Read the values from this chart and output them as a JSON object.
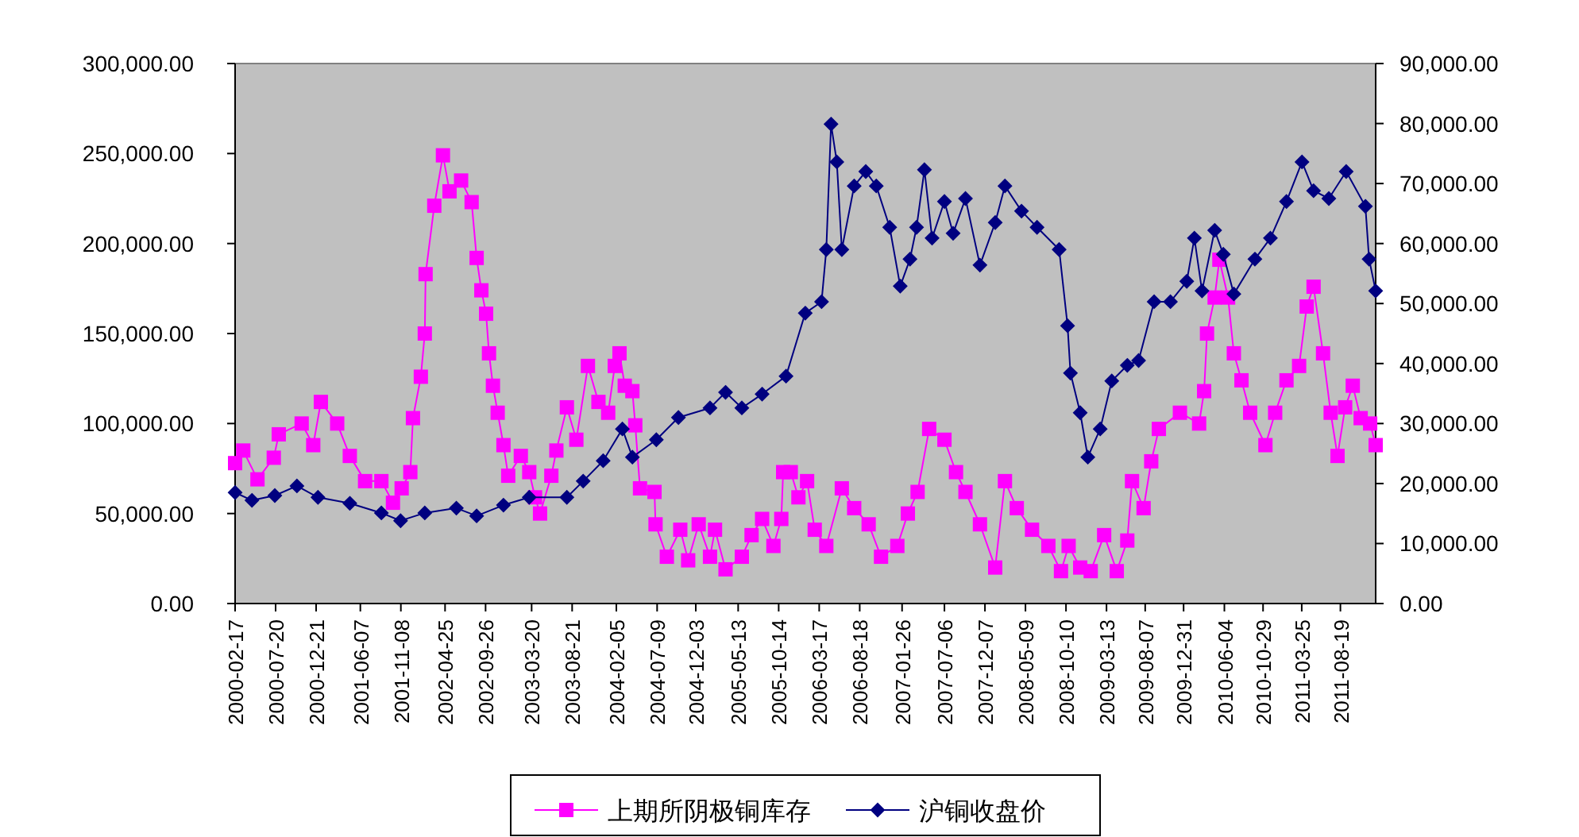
{
  "chart_data": {
    "type": "line",
    "legend": "bottom",
    "xlim": [
      "2000-02-17",
      "2011-12-31"
    ],
    "xticks": [
      "2000-02-17",
      "2000-07-20",
      "2000-12-21",
      "2001-06-07",
      "2001-11-08",
      "2002-04-25",
      "2002-09-26",
      "2003-03-20",
      "2003-08-21",
      "2004-02-05",
      "2004-07-09",
      "2004-12-03",
      "2005-05-13",
      "2005-10-14",
      "2006-03-17",
      "2006-08-18",
      "2007-01-26",
      "2007-07-06",
      "2007-12-07",
      "2008-05-09",
      "2008-10-10",
      "2009-03-13",
      "2009-08-07",
      "2009-12-31",
      "2010-06-04",
      "2010-10-29",
      "2011-03-25",
      "2011-08-19"
    ],
    "ylim": [
      0,
      300000
    ],
    "yticks": [
      {
        "value": 0,
        "label": "0.00"
      },
      {
        "value": 50000,
        "label": "50,000.00"
      },
      {
        "value": 100000,
        "label": "100,000.00"
      },
      {
        "value": 150000,
        "label": "150,000.00"
      },
      {
        "value": 200000,
        "label": "200,000.00"
      },
      {
        "value": 250000,
        "label": "250,000.00"
      },
      {
        "value": 300000,
        "label": "300,000.00"
      }
    ],
    "y2lim": [
      0,
      90000
    ],
    "y2ticks": [
      {
        "value": 0,
        "label": "0.00"
      },
      {
        "value": 10000,
        "label": "10,000.00"
      },
      {
        "value": 20000,
        "label": "20,000.00"
      },
      {
        "value": 30000,
        "label": "30,000.00"
      },
      {
        "value": 40000,
        "label": "40,000.00"
      },
      {
        "value": 50000,
        "label": "50,000.00"
      },
      {
        "value": 60000,
        "label": "60,000.00"
      },
      {
        "value": 70000,
        "label": "70,000.00"
      },
      {
        "value": 80000,
        "label": "80,000.00"
      },
      {
        "value": 90000,
        "label": "90,000.00"
      }
    ],
    "series": [
      {
        "name": "上期所阴极铜库存",
        "color": "#ff00ff",
        "marker": "square",
        "x": [
          "2000-02-17",
          "2000-03-19",
          "2000-05-12",
          "2000-07-13",
          "2000-08-01",
          "2000-10-27",
          "2000-12-10",
          "2001-01-08",
          "2001-03-11",
          "2001-04-28",
          "2001-06-25",
          "2001-08-26",
          "2001-10-09",
          "2001-11-11",
          "2001-12-14",
          "2001-12-24",
          "2002-01-23",
          "2002-02-07",
          "2002-02-10",
          "2002-03-15",
          "2002-04-17",
          "2002-05-12",
          "2002-06-25",
          "2002-08-04",
          "2002-08-23",
          "2002-09-10",
          "2002-09-28",
          "2002-10-09",
          "2002-10-24",
          "2002-11-11",
          "2002-12-03",
          "2002-12-21",
          "2003-02-07",
          "2003-03-11",
          "2003-04-02",
          "2003-04-21",
          "2003-06-03",
          "2003-06-22",
          "2003-08-01",
          "2003-09-06",
          "2003-10-20",
          "2003-11-29",
          "2004-01-05",
          "2004-01-30",
          "2004-02-17",
          "2004-03-08",
          "2004-04-06",
          "2004-04-17",
          "2004-05-05",
          "2004-06-29",
          "2004-07-03",
          "2004-08-15",
          "2004-10-05",
          "2004-11-04",
          "2004-12-14",
          "2005-01-26",
          "2005-02-14",
          "2005-03-26",
          "2005-05-27",
          "2005-07-03",
          "2005-08-12",
          "2005-09-24",
          "2005-10-24",
          "2005-10-31",
          "2005-11-29",
          "2005-12-28",
          "2006-01-30",
          "2006-02-28",
          "2006-04-13",
          "2006-06-11",
          "2006-07-28",
          "2006-09-21",
          "2006-11-07",
          "2007-01-08",
          "2007-02-17",
          "2007-03-26",
          "2007-05-09",
          "2007-07-06",
          "2007-08-19",
          "2007-09-24",
          "2007-11-18",
          "2008-01-15",
          "2008-02-21",
          "2008-04-06",
          "2008-06-03",
          "2008-08-04",
          "2008-09-21",
          "2008-10-20",
          "2008-12-03",
          "2009-01-12",
          "2009-03-04",
          "2009-04-21",
          "2009-05-31",
          "2009-06-18",
          "2009-08-01",
          "2009-08-30",
          "2009-09-28",
          "2009-12-17",
          "2010-02-28",
          "2010-03-19",
          "2010-03-30",
          "2010-04-28",
          "2010-05-16",
          "2010-06-18",
          "2010-07-10",
          "2010-08-08",
          "2010-09-10",
          "2010-11-07",
          "2010-12-14",
          "2011-01-26",
          "2011-03-15",
          "2011-04-13",
          "2011-05-09",
          "2011-06-14",
          "2011-07-13",
          "2011-08-08",
          "2011-09-06",
          "2011-10-05",
          "2011-11-04",
          "2011-12-10",
          "2011-12-31"
        ],
        "values": [
          78000,
          85000,
          69000,
          81000,
          94000,
          100000,
          88000,
          112000,
          100000,
          82000,
          68000,
          68000,
          56000,
          64000,
          73000,
          103000,
          126000,
          150000,
          183000,
          221000,
          249000,
          229000,
          235000,
          223000,
          192000,
          174000,
          161000,
          139000,
          121000,
          106000,
          88000,
          71000,
          82000,
          73000,
          59000,
          50000,
          71000,
          85000,
          109000,
          91000,
          132000,
          112000,
          106000,
          132000,
          139000,
          121000,
          118000,
          99000,
          64000,
          62000,
          44000,
          26000,
          41000,
          24000,
          44000,
          26000,
          41000,
          19000,
          26000,
          38000,
          47000,
          32000,
          47000,
          73000,
          73000,
          59000,
          68000,
          41000,
          32000,
          64000,
          53000,
          44000,
          26000,
          32000,
          50000,
          62000,
          97000,
          91000,
          73000,
          62000,
          44000,
          20000,
          68000,
          53000,
          41000,
          32000,
          18000,
          32000,
          20000,
          18000,
          38000,
          18000,
          35000,
          68000,
          53000,
          79000,
          97000,
          106000,
          100000,
          118000,
          150000,
          170000,
          191000,
          170000,
          139000,
          124000,
          106000,
          88000,
          106000,
          124000,
          132000,
          165000,
          176000,
          139000,
          106000,
          82000,
          109000,
          121000,
          103000,
          100000,
          88000
        ]
      },
      {
        "name": "沪铜收盘价",
        "color": "#000080",
        "marker": "diamond",
        "axis": "y2",
        "x": [
          "2000-02-17",
          "2000-04-21",
          "2000-07-17",
          "2000-10-09",
          "2000-12-28",
          "2001-04-28",
          "2001-08-26",
          "2001-11-07",
          "2002-02-07",
          "2002-06-07",
          "2002-08-23",
          "2002-12-03",
          "2003-03-11",
          "2003-08-01",
          "2003-10-02",
          "2003-12-17",
          "2004-02-28",
          "2004-04-06",
          "2004-07-06",
          "2004-09-28",
          "2005-01-26",
          "2005-03-26",
          "2005-05-27",
          "2005-08-12",
          "2005-11-11",
          "2006-01-23",
          "2006-03-26",
          "2006-04-13",
          "2006-05-01",
          "2006-05-23",
          "2006-06-11",
          "2006-07-28",
          "2006-09-10",
          "2006-10-20",
          "2006-12-10",
          "2007-01-19",
          "2007-02-25",
          "2007-03-22",
          "2007-04-21",
          "2007-05-20",
          "2007-07-06",
          "2007-08-08",
          "2007-09-24",
          "2007-11-18",
          "2008-01-15",
          "2008-02-21",
          "2008-04-24",
          "2008-06-22",
          "2008-09-14",
          "2008-10-16",
          "2008-10-27",
          "2008-12-03",
          "2009-01-01",
          "2009-02-17",
          "2009-04-02",
          "2009-05-31",
          "2009-07-13",
          "2009-09-10",
          "2009-11-11",
          "2010-01-12",
          "2010-02-10",
          "2010-03-11",
          "2010-04-28",
          "2010-05-31",
          "2010-07-10",
          "2010-09-28",
          "2010-11-26",
          "2011-01-26",
          "2011-03-26",
          "2011-05-09",
          "2011-07-06",
          "2011-09-10",
          "2011-11-22",
          "2011-12-06",
          "2011-12-31"
        ],
        "values": [
          18500,
          17200,
          18000,
          19600,
          17700,
          16700,
          15100,
          13800,
          15100,
          15900,
          14600,
          16400,
          17700,
          17700,
          20400,
          23800,
          29100,
          24400,
          27300,
          31000,
          32600,
          35200,
          32600,
          34900,
          37900,
          48400,
          50300,
          59000,
          79900,
          73600,
          59000,
          69600,
          72000,
          69600,
          62700,
          52900,
          57400,
          62700,
          72300,
          60900,
          67000,
          61700,
          67500,
          56400,
          63500,
          69600,
          65400,
          62700,
          59000,
          46300,
          38400,
          31800,
          24400,
          29100,
          37100,
          39700,
          40500,
          50300,
          50300,
          53700,
          60900,
          52100,
          62200,
          58200,
          51600,
          57400,
          60900,
          67000,
          73600,
          68800,
          67500,
          72000,
          66200,
          57400,
          52100
        ]
      }
    ]
  }
}
